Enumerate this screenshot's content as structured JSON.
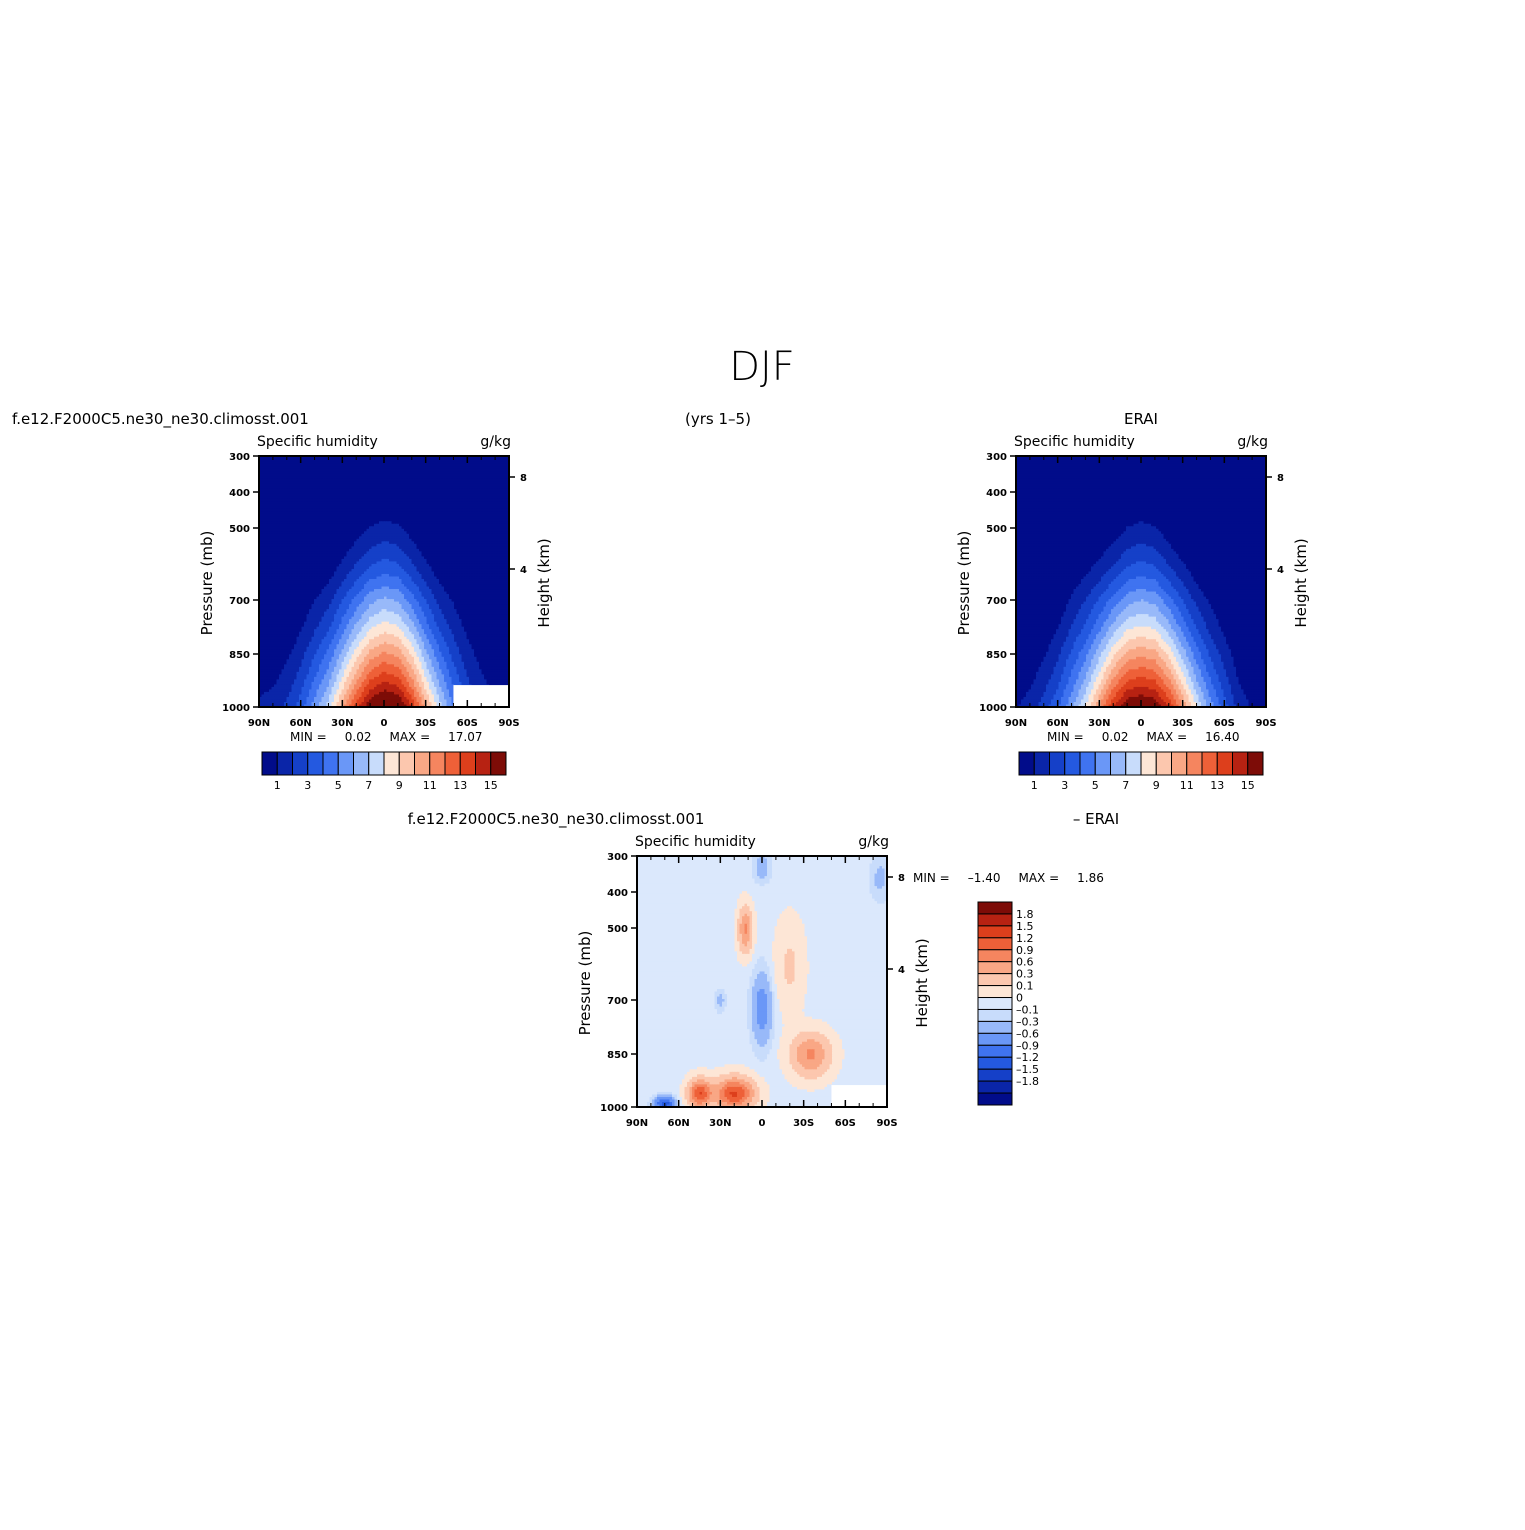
{
  "page": {
    "title": "DJF",
    "top_left_title": "f.e12.F2000C5.ne30_ne30.climosst.001",
    "top_center_title": "(yrs 1–5)",
    "top_right_title": "ERAI",
    "bottom_left_title": "f.e12.F2000C5.ne30_ne30.climosst.001",
    "bottom_right_title": "– ERAI"
  },
  "colors": {
    "abs_levels": [
      "#010c8a",
      "#0a25a8",
      "#1540c8",
      "#2459e0",
      "#3f73f0",
      "#6a97f7",
      "#98b9f9",
      "#c8dcfb",
      "#fde6d6",
      "#fcc7ae",
      "#f9a785",
      "#f5855f",
      "#ee6038",
      "#dd3f1c",
      "#b72212",
      "#7d0c07"
    ],
    "diff_levels": [
      "#010c8a",
      "#0a25a8",
      "#1540c8",
      "#2459e0",
      "#3f73f0",
      "#6a97f7",
      "#98b9f9",
      "#c8dcfb",
      "#dbe8fc",
      "#fde6d6",
      "#fcc7ae",
      "#f9a785",
      "#f5855f",
      "#ee6038",
      "#dd3f1c",
      "#b72212",
      "#7d0c07"
    ]
  },
  "chart_data": [
    {
      "type": "heatmap",
      "panel": "model",
      "left_label": "Specific humidity",
      "right_label": "g/kg",
      "xlabel": "",
      "ylabel": "Pressure (mb)",
      "ylabel_right": "Height (km)",
      "x_ticks": [
        "90N",
        "60N",
        "30N",
        "0",
        "30S",
        "60S",
        "90S"
      ],
      "y_ticks": [
        "300",
        "400",
        "500",
        "700",
        "850",
        "1000"
      ],
      "y_ticks_right": [
        "8",
        "4"
      ],
      "ylim": [
        1000,
        300
      ],
      "xlim": [
        90,
        -90
      ],
      "min_label": "MIN =",
      "min_value": "0.02",
      "max_label": "MAX =",
      "max_value": "17.07",
      "colorbar_labels": [
        "1",
        "3",
        "5",
        "7",
        "9",
        "11",
        "13",
        "15"
      ],
      "profile": {
        "lats": [
          90,
          80,
          70,
          60,
          50,
          40,
          30,
          20,
          10,
          0,
          -10,
          -20,
          -30,
          -40,
          -50,
          -60,
          -70,
          -80,
          -90
        ],
        "surface": [
          1.2,
          1.5,
          2.2,
          3.5,
          5.5,
          7.5,
          10.5,
          13.5,
          16.0,
          17.07,
          16.5,
          14.0,
          10.5,
          7.5,
          5.0,
          3.0,
          1.8,
          1.2,
          0.9
        ],
        "tops": [
          740,
          760,
          690,
          620,
          560,
          520,
          470,
          430,
          400,
          385,
          395,
          430,
          470,
          520,
          560,
          620,
          690,
          760,
          800
        ]
      },
      "masked": {
        "lat_from": -50,
        "lat_to": -90,
        "p_from": 935,
        "p_to": 1000
      }
    },
    {
      "type": "heatmap",
      "panel": "obs",
      "left_label": "Specific humidity",
      "right_label": "g/kg",
      "xlabel": "",
      "ylabel": "Pressure (mb)",
      "ylabel_right": "Height (km)",
      "x_ticks": [
        "90N",
        "60N",
        "30N",
        "0",
        "30S",
        "60S",
        "90S"
      ],
      "y_ticks": [
        "300",
        "400",
        "500",
        "700",
        "850",
        "1000"
      ],
      "y_ticks_right": [
        "8",
        "4"
      ],
      "ylim": [
        1000,
        300
      ],
      "xlim": [
        90,
        -90
      ],
      "min_label": "MIN =",
      "min_value": "0.02",
      "max_label": "MAX =",
      "max_value": "16.40",
      "colorbar_labels": [
        "1",
        "3",
        "5",
        "7",
        "9",
        "11",
        "13",
        "15"
      ],
      "profile": {
        "lats": [
          90,
          80,
          70,
          60,
          50,
          40,
          30,
          20,
          10,
          0,
          -10,
          -20,
          -30,
          -40,
          -50,
          -60,
          -70,
          -80,
          -90
        ],
        "surface": [
          0.9,
          1.5,
          2.5,
          3.8,
          5.8,
          8.0,
          11.0,
          14.0,
          16.0,
          16.4,
          16.0,
          14.0,
          11.0,
          8.0,
          5.5,
          3.5,
          1.6,
          0.9,
          0.7
        ],
        "tops": [
          800,
          780,
          700,
          620,
          540,
          500,
          470,
          440,
          405,
          385,
          400,
          440,
          480,
          530,
          580,
          640,
          720,
          790,
          820
        ]
      },
      "masked": null
    },
    {
      "type": "heatmap",
      "panel": "difference",
      "left_label": "Specific humidity",
      "right_label": "g/kg",
      "xlabel": "",
      "ylabel": "Pressure (mb)",
      "ylabel_right": "Height (km)",
      "x_ticks": [
        "90N",
        "60N",
        "30N",
        "0",
        "30S",
        "60S",
        "90S"
      ],
      "y_ticks": [
        "300",
        "400",
        "500",
        "700",
        "850",
        "1000"
      ],
      "y_ticks_right": [
        "8",
        "4"
      ],
      "ylim": [
        1000,
        300
      ],
      "xlim": [
        90,
        -90
      ],
      "min_label": "MIN =",
      "min_value": "–1.40",
      "max_label": "MAX =",
      "max_value": "1.86",
      "colorbar_labels": [
        "1.8",
        "1.5",
        "1.2",
        "0.9",
        "0.6",
        "0.3",
        "0.1",
        "0",
        "–0.1",
        "–0.3",
        "–0.6",
        "–0.9",
        "–1.2",
        "–1.5",
        "–1.8"
      ],
      "features": [
        {
          "lat": 20,
          "p": 960,
          "amp": 1.5,
          "wlat": 14,
          "wp": 45
        },
        {
          "lat": 45,
          "p": 960,
          "amp": 1.4,
          "wlat": 8,
          "wp": 40
        },
        {
          "lat": 12,
          "p": 500,
          "amp": 0.9,
          "wlat": 5,
          "wp": 60
        },
        {
          "lat": -35,
          "p": 850,
          "amp": 0.9,
          "wlat": 14,
          "wp": 60
        },
        {
          "lat": 0,
          "p": 720,
          "amp": -0.5,
          "wlat": 7,
          "wp": 100
        },
        {
          "lat": 30,
          "p": 700,
          "amp": -0.2,
          "wlat": 4,
          "wp": 30
        },
        {
          "lat": 70,
          "p": 990,
          "amp": -1.1,
          "wlat": 7,
          "wp": 20
        },
        {
          "lat": 0,
          "p": 330,
          "amp": -0.25,
          "wlat": 6,
          "wp": 40
        },
        {
          "lat": -85,
          "p": 360,
          "amp": -0.2,
          "wlat": 7,
          "wp": 60
        },
        {
          "lat": -20,
          "p": 600,
          "amp": 0.3,
          "wlat": 10,
          "wp": 120
        }
      ],
      "masked": {
        "lat_from": -50,
        "lat_to": -90,
        "p_from": 935,
        "p_to": 1000
      }
    }
  ]
}
